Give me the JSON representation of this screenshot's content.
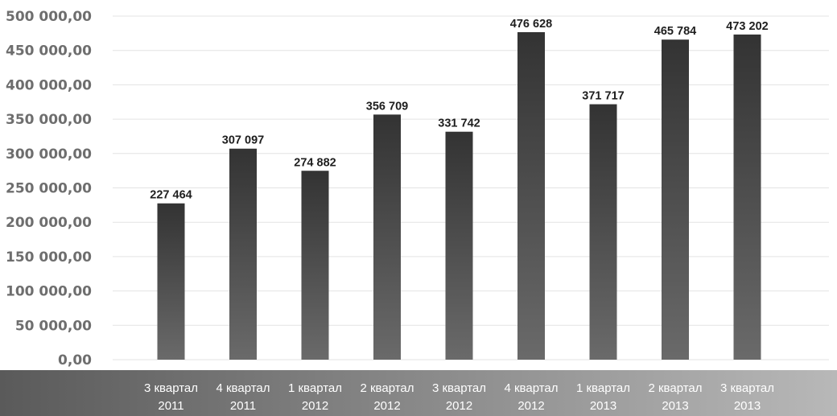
{
  "chart_data": {
    "type": "bar",
    "categories": [
      [
        "3 квартал",
        "2011"
      ],
      [
        "4 квартал",
        "2011"
      ],
      [
        "1 квартал",
        "2012"
      ],
      [
        "2 квартал",
        "2012"
      ],
      [
        "3 квартал",
        "2012"
      ],
      [
        "4 квартал",
        "2012"
      ],
      [
        "1 квартал",
        "2013"
      ],
      [
        "2 квартал",
        "2013"
      ],
      [
        "3 квартал",
        "2013"
      ]
    ],
    "values": [
      227464,
      307097,
      274882,
      356709,
      331742,
      476628,
      371717,
      465784,
      473202
    ],
    "data_labels": [
      "227 464",
      "307 097",
      "274 882",
      "356 709",
      "331 742",
      "476 628",
      "371 717",
      "465 784",
      "473 202"
    ],
    "y_ticks": [
      {
        "value": 0,
        "label": "0,00"
      },
      {
        "value": 50000,
        "label": "50 000,00"
      },
      {
        "value": 100000,
        "label": "100 000,00"
      },
      {
        "value": 150000,
        "label": "150 000,00"
      },
      {
        "value": 200000,
        "label": "200 000,00"
      },
      {
        "value": 250000,
        "label": "250 000,00"
      },
      {
        "value": 300000,
        "label": "300 000,00"
      },
      {
        "value": 350000,
        "label": "350 000,00"
      },
      {
        "value": 400000,
        "label": "400 000,00"
      },
      {
        "value": 450000,
        "label": "450 000,00"
      },
      {
        "value": 500000,
        "label": "500 000,00"
      }
    ],
    "ylim": [
      0,
      500000
    ],
    "title": "",
    "xlabel": "",
    "ylabel": "",
    "grid": true,
    "legend": "none",
    "colors": {
      "bar_top": "#333333",
      "bar_bottom": "#6a6a6a",
      "axis_band_left": "#5a5a5a",
      "axis_band_right": "#b8b8b8"
    }
  }
}
